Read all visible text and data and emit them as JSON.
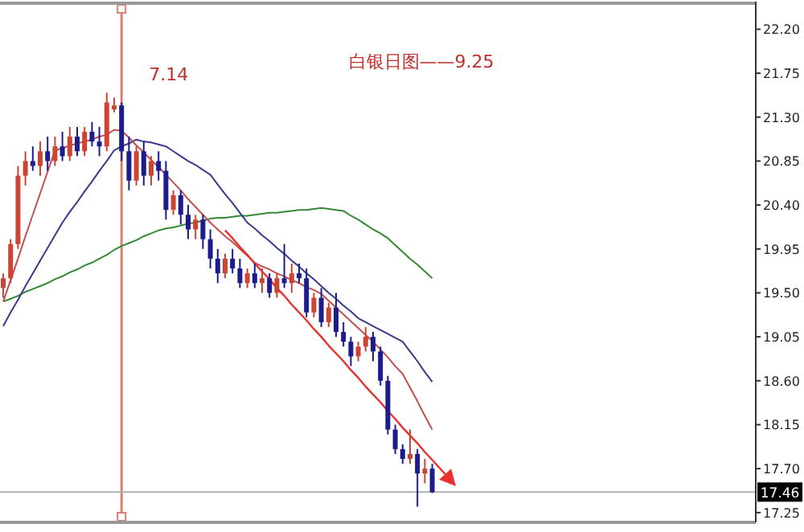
{
  "chart_data": {
    "type": "candlestick",
    "title": "白银日图——9.25",
    "ylim": [
      17.15,
      22.45
    ],
    "tick_labels": "y",
    "grid": false,
    "annotations": [
      "7.14"
    ],
    "categories": [
      null,
      null,
      null,
      null,
      null,
      null,
      null,
      null,
      null,
      null,
      null,
      null,
      null,
      null,
      null,
      null,
      null,
      null,
      null,
      null,
      null,
      null,
      null,
      null,
      null,
      null,
      null,
      null,
      null,
      null,
      null,
      null,
      null,
      null,
      null,
      null,
      null,
      null,
      null,
      null,
      null,
      null,
      null,
      null,
      null,
      null,
      null,
      null,
      null,
      null,
      null,
      null,
      null,
      null,
      null,
      null,
      null,
      null,
      null
    ],
    "yticks": [
      {
        "value": 22.2,
        "label": "22.20"
      },
      {
        "value": 21.75,
        "label": "21.75"
      },
      {
        "value": 21.3,
        "label": "21.30"
      },
      {
        "value": 20.85,
        "label": "20.85"
      },
      {
        "value": 20.4,
        "label": "20.40"
      },
      {
        "value": 19.95,
        "label": "19.95"
      },
      {
        "value": 19.5,
        "label": "19.50"
      },
      {
        "value": 19.05,
        "label": "19.05"
      },
      {
        "value": 18.6,
        "label": "18.60"
      },
      {
        "value": 18.15,
        "label": "18.15"
      },
      {
        "value": 17.7,
        "label": "17.70"
      },
      {
        "value": 17.25,
        "label": "17.25"
      }
    ],
    "ref_lines": [
      {
        "axis": "y",
        "value": 17.46,
        "label": "17.46",
        "color": "#b0b0b0"
      }
    ],
    "ohlc": [
      [
        19.55,
        19.7,
        19.45,
        19.65
      ],
      [
        19.65,
        20.05,
        19.6,
        20.0
      ],
      [
        20.0,
        20.8,
        19.95,
        20.7
      ],
      [
        20.7,
        20.95,
        20.6,
        20.85
      ],
      [
        20.85,
        21.0,
        20.75,
        20.8
      ],
      [
        20.8,
        21.05,
        20.7,
        20.95
      ],
      [
        20.95,
        21.1,
        20.75,
        20.85
      ],
      [
        20.85,
        21.1,
        20.8,
        21.0
      ],
      [
        21.0,
        21.15,
        20.85,
        20.9
      ],
      [
        20.9,
        21.2,
        20.85,
        21.1
      ],
      [
        21.1,
        21.2,
        20.9,
        20.95
      ],
      [
        20.95,
        21.2,
        20.9,
        21.15
      ],
      [
        21.15,
        21.25,
        21.0,
        21.05
      ],
      [
        21.05,
        21.2,
        20.9,
        21.0
      ],
      [
        21.0,
        21.55,
        20.95,
        21.45
      ],
      [
        21.38,
        21.5,
        21.35,
        21.42
      ],
      [
        21.42,
        21.45,
        20.85,
        20.95
      ],
      [
        20.95,
        21.1,
        20.55,
        20.65
      ],
      [
        20.65,
        21.0,
        20.6,
        20.95
      ],
      [
        20.95,
        21.05,
        20.6,
        20.7
      ],
      [
        20.7,
        20.9,
        20.6,
        20.85
      ],
      [
        20.85,
        20.95,
        20.65,
        20.75
      ],
      [
        20.75,
        20.85,
        20.25,
        20.35
      ],
      [
        20.35,
        20.55,
        20.3,
        20.5
      ],
      [
        20.5,
        20.55,
        20.2,
        20.3
      ],
      [
        20.3,
        20.4,
        20.05,
        20.15
      ],
      [
        20.15,
        20.3,
        20.05,
        20.25
      ],
      [
        20.25,
        20.3,
        19.95,
        20.05
      ],
      [
        20.05,
        20.15,
        19.75,
        19.85
      ],
      [
        19.85,
        19.95,
        19.6,
        19.7
      ],
      [
        19.7,
        19.9,
        19.65,
        19.85
      ],
      [
        19.85,
        19.95,
        19.7,
        19.75
      ],
      [
        19.75,
        19.85,
        19.55,
        19.6
      ],
      [
        19.6,
        19.75,
        19.55,
        19.7
      ],
      [
        19.7,
        19.8,
        19.55,
        19.6
      ],
      [
        19.6,
        19.75,
        19.5,
        19.65
      ],
      [
        19.65,
        19.7,
        19.45,
        19.5
      ],
      [
        19.5,
        19.7,
        19.45,
        19.65
      ],
      [
        19.65,
        20.0,
        19.55,
        19.6
      ],
      [
        19.6,
        19.8,
        19.5,
        19.7
      ],
      [
        19.7,
        19.8,
        19.6,
        19.65
      ],
      [
        19.65,
        19.75,
        19.25,
        19.3
      ],
      [
        19.3,
        19.5,
        19.25,
        19.45
      ],
      [
        19.45,
        19.55,
        19.15,
        19.2
      ],
      [
        19.2,
        19.4,
        19.15,
        19.35
      ],
      [
        19.35,
        19.5,
        19.05,
        19.1
      ],
      [
        19.1,
        19.2,
        18.95,
        19.0
      ],
      [
        19.0,
        19.05,
        18.75,
        18.85
      ],
      [
        18.85,
        19.0,
        18.8,
        18.95
      ],
      [
        18.95,
        19.15,
        18.9,
        19.05
      ],
      [
        19.05,
        19.1,
        18.8,
        18.9
      ],
      [
        18.9,
        18.95,
        18.55,
        18.6
      ],
      [
        18.6,
        18.65,
        18.05,
        18.1
      ],
      [
        18.1,
        18.15,
        17.85,
        17.9
      ],
      [
        17.9,
        17.95,
        17.75,
        17.8
      ],
      [
        17.8,
        18.1,
        17.75,
        17.85
      ],
      [
        17.85,
        17.9,
        17.31,
        17.65
      ],
      [
        17.65,
        17.8,
        17.55,
        17.7
      ],
      [
        17.7,
        17.75,
        17.45,
        17.46
      ]
    ],
    "colors": [
      "#cc4433",
      "#cc4433",
      "#cc4433",
      "#cc4433",
      "#1c1c8c",
      "#cc4433",
      "#1c1c8c",
      "#cc4433",
      "#1c1c8c",
      "#cc4433",
      "#1c1c8c",
      "#cc4433",
      "#1c1c8c",
      "#1c1c8c",
      "#cc4433",
      "#cc4433",
      "#1c1c8c",
      "#1c1c8c",
      "#cc4433",
      "#1c1c8c",
      "#cc4433",
      "#1c1c8c",
      "#1c1c8c",
      "#cc4433",
      "#1c1c8c",
      "#1c1c8c",
      "#cc4433",
      "#1c1c8c",
      "#1c1c8c",
      "#1c1c8c",
      "#cc4433",
      "#1c1c8c",
      "#1c1c8c",
      "#cc4433",
      "#1c1c8c",
      "#cc4433",
      "#1c1c8c",
      "#cc4433",
      "#1c1c8c",
      "#cc4433",
      "#1c1c8c",
      "#1c1c8c",
      "#cc4433",
      "#1c1c8c",
      "#cc4433",
      "#1c1c8c",
      "#1c1c8c",
      "#1c1c8c",
      "#cc4433",
      "#cc4433",
      "#1c1c8c",
      "#1c1c8c",
      "#1c1c8c",
      "#1c1c8c",
      "#1c1c8c",
      "#cc4433",
      "#1c1c8c",
      "#cc4433",
      "#1c1c8c"
    ],
    "series": [
      {
        "type": "line",
        "color": "#348a34",
        "values": [
          19.41,
          19.44,
          19.47,
          19.51,
          19.54,
          19.57,
          19.6,
          19.64,
          19.67,
          19.71,
          19.74,
          19.78,
          19.81,
          19.85,
          19.89,
          19.94,
          19.98,
          20.01,
          20.04,
          20.08,
          20.11,
          20.14,
          20.16,
          20.17,
          20.19,
          20.21,
          20.22,
          20.24,
          20.26,
          20.27,
          20.27,
          20.28,
          20.29,
          20.29,
          20.3,
          20.31,
          20.32,
          20.32,
          20.33,
          20.34,
          20.35,
          20.35,
          20.36,
          20.37,
          20.36,
          20.35,
          20.34,
          20.29,
          20.25,
          20.2,
          20.15,
          20.11,
          20.06,
          19.99,
          19.92,
          19.85,
          19.79,
          19.72,
          19.65
        ]
      },
      {
        "type": "line",
        "color": "#3a3a8c",
        "values": [
          19.16,
          19.3,
          19.43,
          19.57,
          19.7,
          19.83,
          19.96,
          20.09,
          20.22,
          20.33,
          20.43,
          20.54,
          20.64,
          20.75,
          20.85,
          20.96,
          21.0,
          21.03,
          21.07,
          21.05,
          21.04,
          21.02,
          21.0,
          20.95,
          20.9,
          20.85,
          20.81,
          20.76,
          20.71,
          20.61,
          20.51,
          20.42,
          20.32,
          20.22,
          20.16,
          20.09,
          20.03,
          19.96,
          19.9,
          19.83,
          19.77,
          19.7,
          19.64,
          19.57,
          19.5,
          19.44,
          19.37,
          19.31,
          19.24,
          19.2,
          19.16,
          19.12,
          19.08,
          19.04,
          19.0,
          18.9,
          18.8,
          18.69,
          18.59
        ]
      },
      {
        "type": "line",
        "color": "#c0504d",
        "values": [
          19.41,
          19.63,
          19.85,
          20.08,
          20.3,
          20.52,
          20.74,
          20.96,
          20.98,
          21.01,
          21.03,
          21.05,
          21.07,
          21.1,
          21.12,
          21.17,
          21.16,
          21.09,
          21.01,
          20.94,
          20.86,
          20.79,
          20.71,
          20.63,
          20.55,
          20.46,
          20.38,
          20.3,
          20.22,
          20.15,
          20.08,
          20.02,
          19.95,
          19.88,
          19.81,
          19.77,
          19.74,
          19.7,
          19.67,
          19.63,
          19.6,
          19.56,
          19.53,
          19.49,
          19.42,
          19.35,
          19.28,
          19.21,
          19.14,
          19.07,
          19.0,
          18.92,
          18.84,
          18.75,
          18.67,
          18.53,
          18.39,
          18.24,
          18.1
        ]
      },
      {
        "type": "line",
        "color": "#e83030",
        "values": [
          null,
          null,
          null,
          null,
          null,
          null,
          null,
          null,
          null,
          null,
          null,
          null,
          null,
          null,
          null,
          null,
          null,
          null,
          null,
          null,
          null,
          null,
          null,
          null,
          null,
          null,
          null,
          null,
          null,
          null,
          20.14,
          20.06,
          19.97,
          19.89,
          19.8,
          19.72,
          19.64,
          19.55,
          19.47,
          19.38,
          19.3,
          19.22,
          19.13,
          19.05,
          18.96,
          18.88,
          18.8,
          18.71,
          18.63,
          18.54,
          18.46,
          18.38,
          18.29,
          18.21,
          18.12,
          18.04,
          17.96,
          17.87,
          17.79
        ]
      }
    ]
  }
}
